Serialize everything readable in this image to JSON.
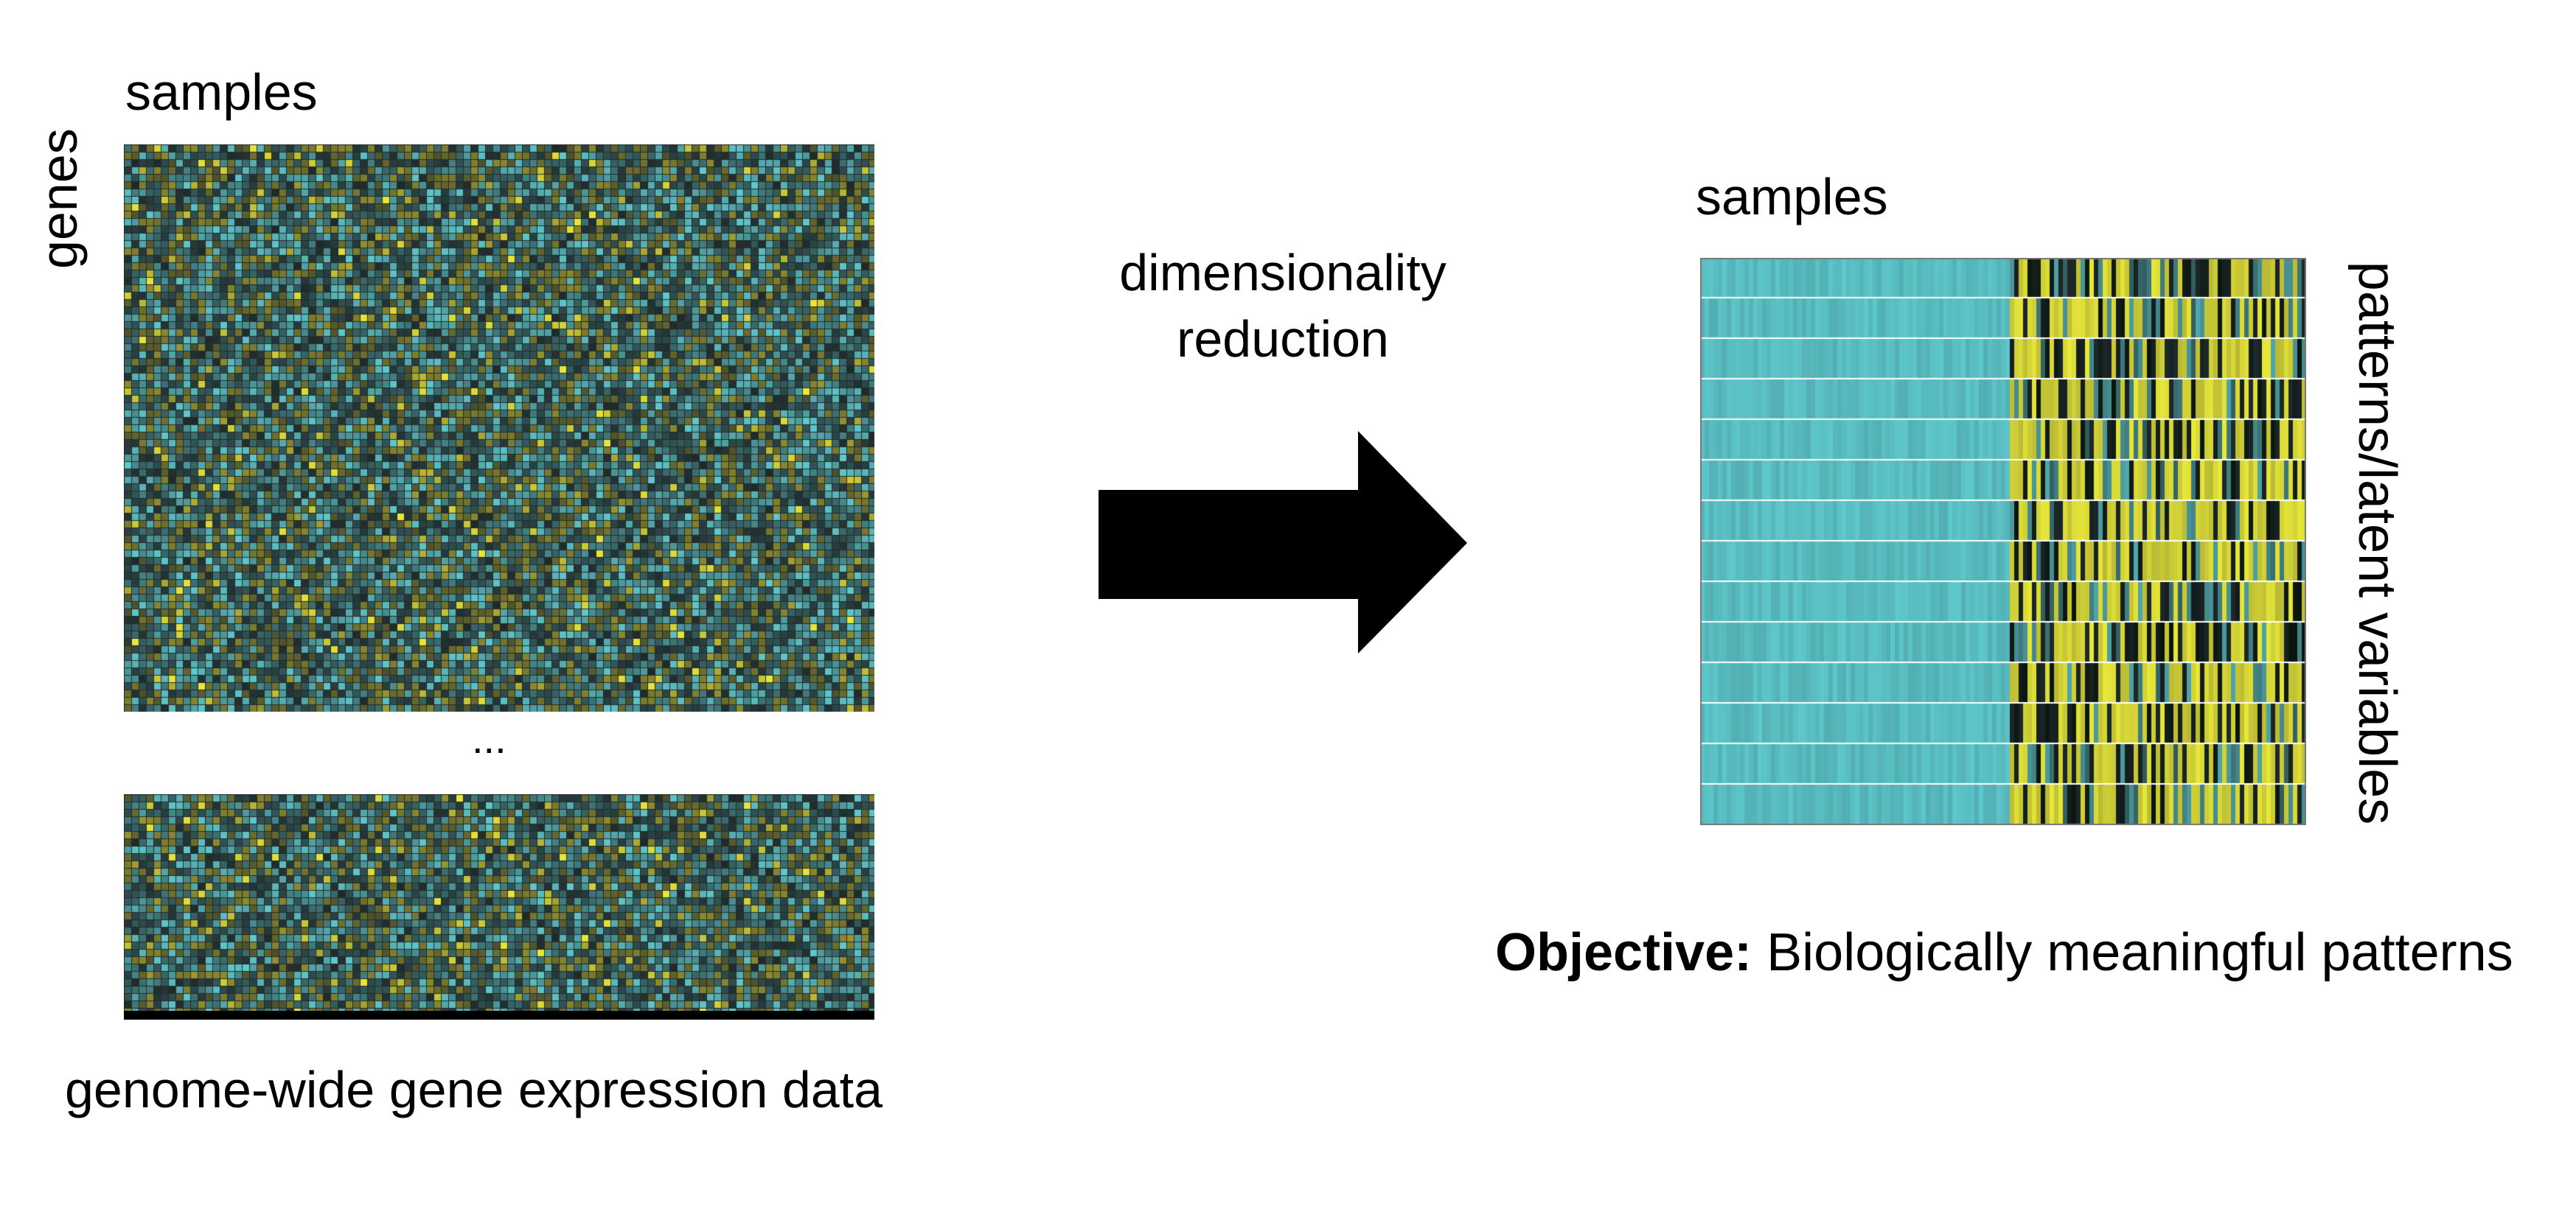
{
  "left_panel": {
    "x_axis_label": "samples",
    "y_axis_label": "genes",
    "ellipsis": "...",
    "caption": "genome-wide gene expression data"
  },
  "middle": {
    "arrow_label_line1": "dimensionality",
    "arrow_label_line2": "reduction",
    "arrow_icon": "right-arrow-icon"
  },
  "right_panel": {
    "x_axis_label": "samples",
    "y_axis_label": "patterns/latent variables",
    "objective_bold": "Objective:",
    "objective_text": " Biologically meaningful patterns"
  },
  "colors": {
    "cyan": "#5ec8cc",
    "olive": "#8a8a2e",
    "yellow": "#e8e83a",
    "dark": "#1e2a2a",
    "grid": "#2a2a2a"
  }
}
